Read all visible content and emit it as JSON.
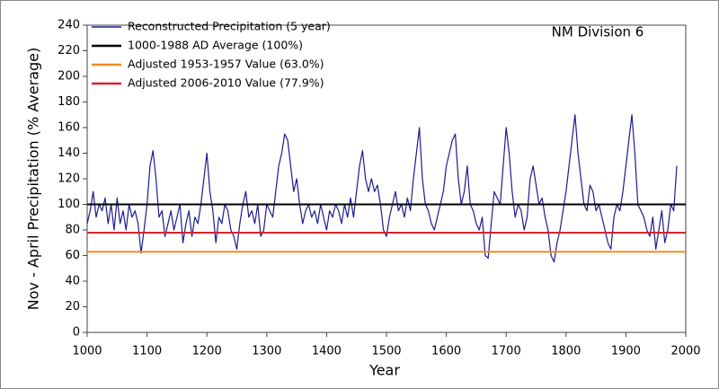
{
  "chart_data": {
    "type": "line",
    "annotation": "NM Division 6",
    "xlabel": "Year",
    "ylabel": "Nov - April Precipitation (% Average)",
    "xlim": [
      1000,
      2000
    ],
    "ylim": [
      0,
      240
    ],
    "xticks": [
      1000,
      1100,
      1200,
      1300,
      1400,
      1500,
      1600,
      1700,
      1800,
      1900,
      2000
    ],
    "yticks": [
      0,
      20,
      40,
      60,
      80,
      100,
      120,
      140,
      160,
      180,
      200,
      220,
      240
    ],
    "grid": false,
    "legend": "upper left",
    "x": [
      1000,
      1005,
      1010,
      1015,
      1020,
      1025,
      1030,
      1035,
      1040,
      1045,
      1050,
      1055,
      1060,
      1065,
      1070,
      1075,
      1080,
      1085,
      1090,
      1095,
      1100,
      1105,
      1110,
      1115,
      1120,
      1125,
      1130,
      1135,
      1140,
      1145,
      1150,
      1155,
      1160,
      1165,
      1170,
      1175,
      1180,
      1185,
      1190,
      1195,
      1200,
      1205,
      1210,
      1215,
      1220,
      1225,
      1230,
      1235,
      1240,
      1245,
      1250,
      1255,
      1260,
      1265,
      1270,
      1275,
      1280,
      1285,
      1290,
      1295,
      1300,
      1305,
      1310,
      1315,
      1320,
      1325,
      1330,
      1335,
      1340,
      1345,
      1350,
      1355,
      1360,
      1365,
      1370,
      1375,
      1380,
      1385,
      1390,
      1395,
      1400,
      1405,
      1410,
      1415,
      1420,
      1425,
      1430,
      1435,
      1440,
      1445,
      1450,
      1455,
      1460,
      1465,
      1470,
      1475,
      1480,
      1485,
      1490,
      1495,
      1500,
      1505,
      1510,
      1515,
      1520,
      1525,
      1530,
      1535,
      1540,
      1545,
      1550,
      1555,
      1560,
      1565,
      1570,
      1575,
      1580,
      1585,
      1590,
      1595,
      1600,
      1605,
      1610,
      1615,
      1620,
      1625,
      1630,
      1635,
      1640,
      1645,
      1650,
      1655,
      1660,
      1665,
      1670,
      1675,
      1680,
      1685,
      1690,
      1695,
      1700,
      1705,
      1710,
      1715,
      1720,
      1725,
      1730,
      1735,
      1740,
      1745,
      1750,
      1755,
      1760,
      1765,
      1770,
      1775,
      1780,
      1785,
      1790,
      1795,
      1800,
      1805,
      1810,
      1815,
      1820,
      1825,
      1830,
      1835,
      1840,
      1845,
      1850,
      1855,
      1860,
      1865,
      1870,
      1875,
      1880,
      1885,
      1890,
      1895,
      1900,
      1905,
      1910,
      1915,
      1920,
      1925,
      1930,
      1935,
      1940,
      1945,
      1950,
      1955,
      1960,
      1965,
      1970,
      1975,
      1980,
      1985
    ],
    "series": [
      {
        "name": "Reconstructed Precipitation (5 year)",
        "color": "#1c1c8f",
        "values": [
          85,
          95,
          110,
          90,
          100,
          95,
          105,
          85,
          100,
          80,
          105,
          85,
          95,
          80,
          100,
          90,
          95,
          85,
          62,
          80,
          100,
          130,
          142,
          120,
          90,
          95,
          75,
          85,
          95,
          80,
          90,
          100,
          70,
          85,
          95,
          75,
          90,
          85,
          100,
          120,
          140,
          110,
          95,
          70,
          90,
          85,
          100,
          95,
          80,
          75,
          65,
          85,
          100,
          110,
          90,
          95,
          85,
          100,
          75,
          80,
          100,
          95,
          90,
          110,
          130,
          140,
          155,
          150,
          130,
          110,
          120,
          100,
          85,
          95,
          100,
          90,
          95,
          85,
          100,
          90,
          80,
          95,
          90,
          100,
          95,
          85,
          100,
          90,
          105,
          90,
          110,
          130,
          142,
          120,
          110,
          120,
          110,
          115,
          100,
          80,
          75,
          90,
          100,
          110,
          95,
          100,
          90,
          105,
          95,
          120,
          140,
          160,
          120,
          100,
          95,
          85,
          80,
          90,
          100,
          110,
          130,
          140,
          150,
          155,
          120,
          100,
          110,
          130,
          100,
          95,
          85,
          80,
          90,
          60,
          58,
          85,
          110,
          105,
          100,
          130,
          160,
          140,
          110,
          90,
          100,
          95,
          80,
          90,
          120,
          130,
          115,
          100,
          105,
          90,
          80,
          60,
          55,
          70,
          80,
          95,
          110,
          130,
          150,
          170,
          140,
          120,
          100,
          95,
          115,
          110,
          95,
          100,
          90,
          80,
          70,
          65,
          90,
          100,
          95,
          110,
          130,
          150,
          170,
          140,
          100,
          95,
          90,
          80,
          75,
          90,
          65,
          80,
          95,
          70,
          80,
          100,
          95,
          130
        ]
      }
    ],
    "reference_lines": [
      {
        "name": "1000-1988 AD Average (100%)",
        "color": "#000000",
        "value": 100
      },
      {
        "name": "Adjusted 1953-1957 Value (63.0%)",
        "color": "#f58a1f",
        "value": 63.0
      },
      {
        "name": "Adjusted 2006-2010 Value (77.9%)",
        "color": "#d9232a",
        "value": 77.9
      }
    ]
  }
}
